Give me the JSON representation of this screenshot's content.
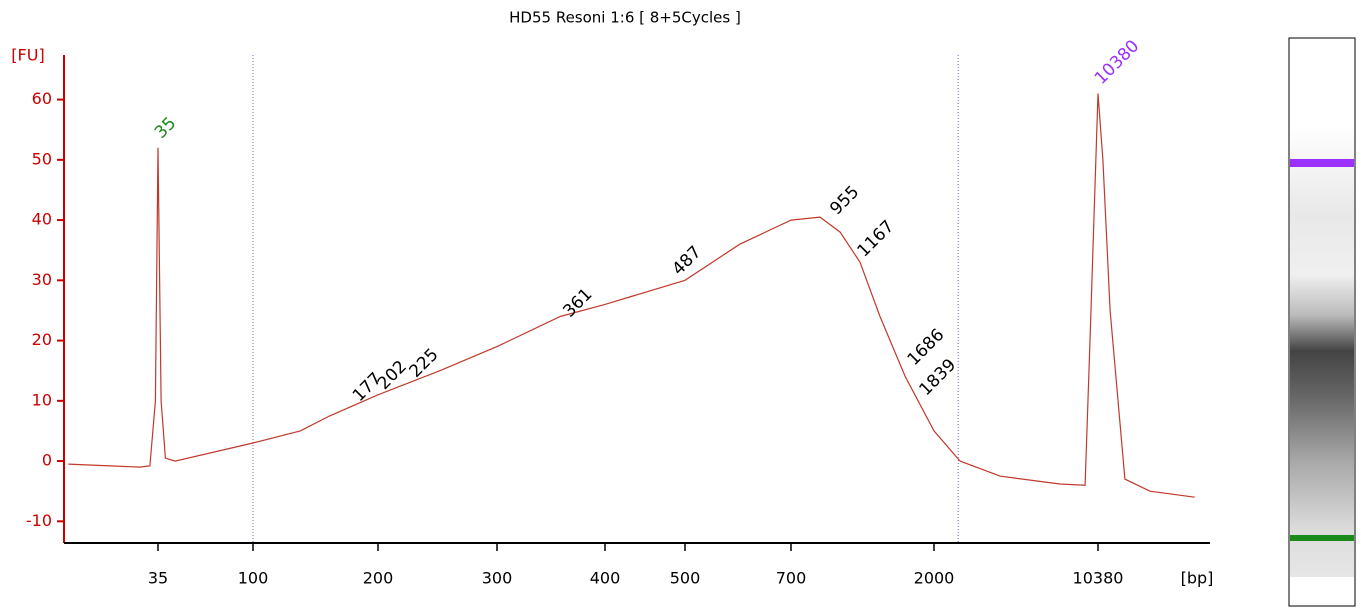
{
  "chart_data": {
    "type": "electropherogram",
    "title": "HD55 Resoni 1:6  [ 8+5Cycles ]",
    "y_label": "[FU]",
    "x_label": "[bp]",
    "color": "#c0392b",
    "x": [
      13,
      28.7,
      32,
      34,
      35,
      36.2,
      38,
      42.3,
      100,
      130,
      153,
      200,
      247,
      300,
      355,
      400,
      500,
      595,
      700,
      866,
      1004,
      1162,
      1345,
      1620,
      2000,
      2600,
      3880,
      7080,
      9120,
      9580,
      10380,
      10900,
      11720,
      13600,
      17500,
      27400
    ],
    "y": [
      -0.5,
      -1,
      -0.8,
      10,
      52,
      10,
      0.5,
      0,
      3,
      5,
      7.5,
      11,
      15,
      19,
      24,
      26,
      30,
      36,
      40,
      40.5,
      38,
      33,
      24,
      14,
      5,
      0,
      -2.5,
      -3.8,
      -4,
      20,
      61,
      50,
      25,
      -3,
      -5,
      -6
    ],
    "xticks": [
      35,
      100,
      200,
      300,
      400,
      500,
      700,
      2000,
      10380
    ],
    "ylim": [
      -13.6,
      67.4
    ],
    "yticks": [
      -10,
      0,
      10,
      20,
      30,
      40,
      50,
      60
    ],
    "region": [
      100,
      2550
    ],
    "markers": [
      {
        "x": 35,
        "y": 52,
        "color": "#1a8a1a"
      },
      {
        "x": 10380,
        "y": 61,
        "color": "#9b30ff"
      }
    ],
    "peaks": {
      "x": [
        177,
        202,
        225,
        361,
        487,
        955,
        1167,
        1686,
        1839
      ],
      "y": [
        9,
        11,
        13,
        23,
        30,
        40,
        33,
        15,
        10
      ]
    }
  }
}
